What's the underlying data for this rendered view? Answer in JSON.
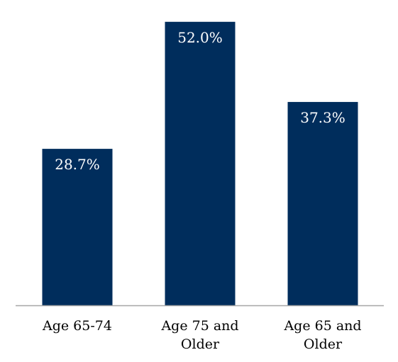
{
  "chart_data": {
    "type": "bar",
    "title": "",
    "xlabel": "",
    "ylabel": "",
    "categories": [
      [
        "Age 65-74"
      ],
      [
        "Age 75 and",
        "Older"
      ],
      [
        "Age 65 and",
        "Older"
      ]
    ],
    "values": [
      28.7,
      52.0,
      37.3
    ],
    "value_labels": [
      "28.7%",
      "52.0%",
      "37.3%"
    ],
    "ylim": [
      0,
      56
    ],
    "grid": false,
    "legend": "none",
    "bar_color": "#002D5C",
    "axis_color": "#A6A6A6"
  }
}
